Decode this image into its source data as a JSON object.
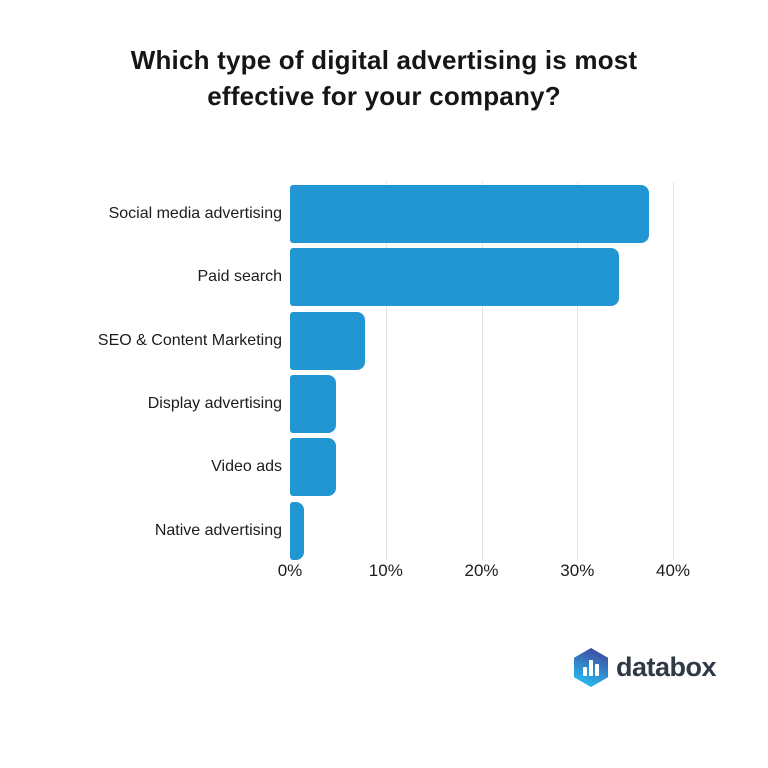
{
  "chart_data": {
    "type": "bar",
    "orientation": "horizontal",
    "title": "Which type of digital advertising is most effective for your company?",
    "title_lines": [
      "Which type of digital advertising is most",
      "effective for your company?"
    ],
    "categories": [
      "Social media advertising",
      "Paid search",
      "SEO & Content Marketing",
      "Display advertising",
      "Video ads",
      "Native advertising"
    ],
    "values": [
      37.5,
      34.4,
      7.8,
      4.8,
      4.8,
      1.5
    ],
    "xlabel": "",
    "ylabel": "",
    "x_tick_values": [
      0,
      10,
      20,
      30,
      40
    ],
    "x_tick_labels": [
      "0%",
      "10%",
      "20%",
      "30%",
      "40%"
    ],
    "xlim": [
      0,
      40.9
    ],
    "grid": "vertical",
    "legend": "none",
    "bar_color": "#2196d3",
    "grid_color": "#e4e4e4",
    "text_color": "#1c1c1c"
  },
  "footer": {
    "brand": "databox",
    "logo_icon": "bar-chart-hexagon-icon",
    "logo_gradient_top": "#3f4da2",
    "logo_gradient_bottom": "#29b2e8",
    "brand_text_color": "#303a46"
  }
}
